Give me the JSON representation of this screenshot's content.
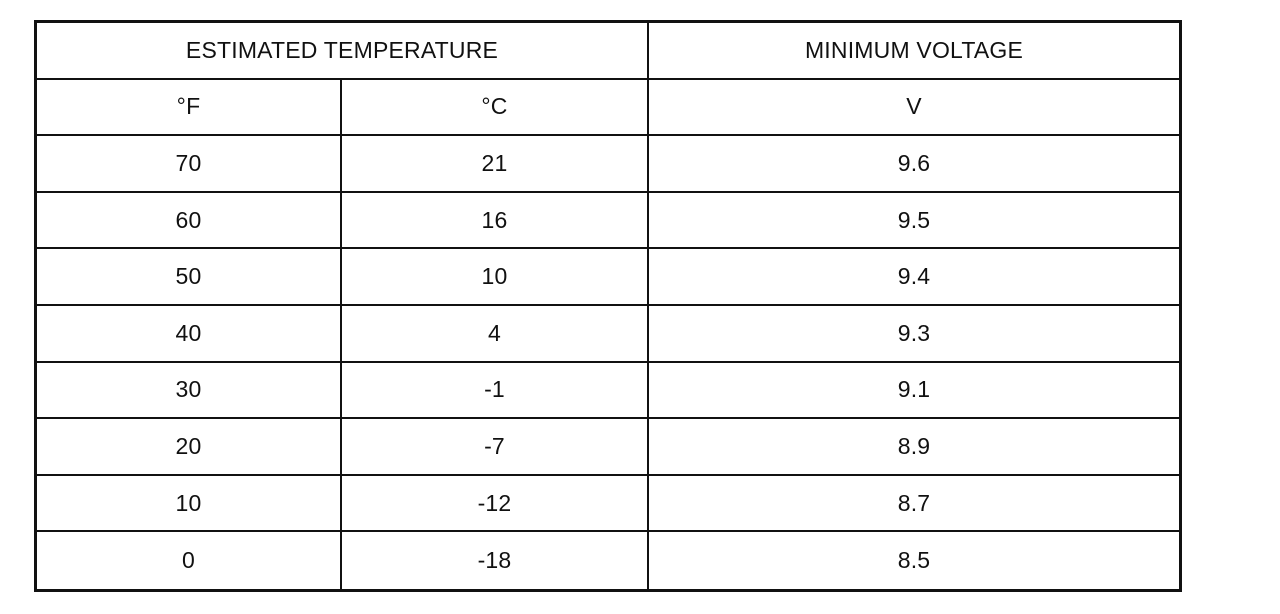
{
  "table": {
    "header_group": {
      "temperature": "ESTIMATED TEMPERATURE",
      "voltage": "MINIMUM VOLTAGE"
    },
    "units": [
      "°F",
      "°C",
      "V"
    ],
    "rows": [
      [
        "70",
        "21",
        "9.6"
      ],
      [
        "60",
        "16",
        "9.5"
      ],
      [
        "50",
        "10",
        "9.4"
      ],
      [
        "40",
        "4",
        "9.3"
      ],
      [
        "30",
        "-1",
        "9.1"
      ],
      [
        "20",
        "-7",
        "8.9"
      ],
      [
        "10",
        "-12",
        "8.7"
      ],
      [
        "0",
        "-18",
        "8.5"
      ]
    ]
  }
}
